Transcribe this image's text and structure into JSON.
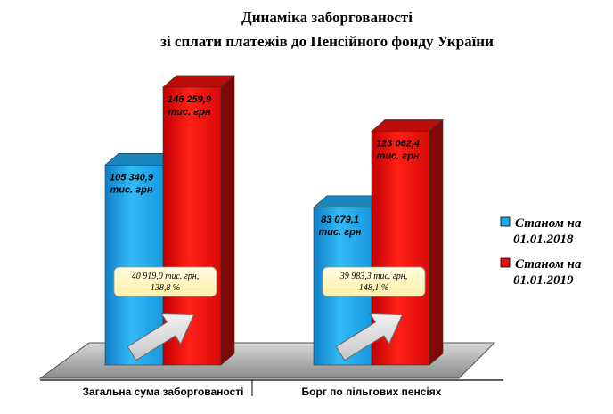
{
  "chart_data": {
    "type": "bar",
    "title": [
      "Динаміка заборгованості",
      "зі сплати платежів до Пенсійного фонду України"
    ],
    "categories": [
      "Загальна сума заборгованості",
      "Борг по пільгових пенсіях"
    ],
    "series": [
      {
        "name": "Станом на 01.01.2018",
        "legend_lines": [
          "Станом на",
          "01.01.2018"
        ],
        "color": "#1ea8ec",
        "values": [
          105340.9,
          83079.1
        ],
        "labels": [
          "105 340,9",
          "83 079,1"
        ]
      },
      {
        "name": "Станом на 01.01.2019",
        "legend_lines": [
          "Станом на",
          "01.01.2019"
        ],
        "color": "#e8100c",
        "values": [
          146259.9,
          123062.4
        ],
        "labels": [
          "146 259,9",
          "123 062,4"
        ]
      }
    ],
    "unit_label": "тис. грн",
    "annotations": [
      {
        "lines": [
          "40 919,0 тис. грн,",
          "138,8 %"
        ]
      },
      {
        "lines": [
          "39 983,3 тис. грн,",
          "148,1 %"
        ]
      }
    ],
    "ylim": [
      0,
      150000
    ],
    "legend_position": "right",
    "grid": false
  }
}
